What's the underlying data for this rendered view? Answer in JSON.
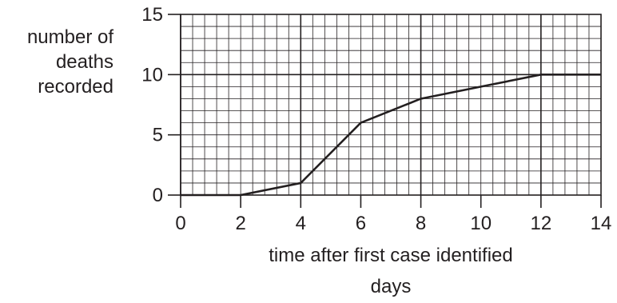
{
  "chart_data": {
    "type": "line",
    "ylabel_lines": [
      "number of",
      "deaths",
      "recorded"
    ],
    "xlabel": "time after first case identified",
    "xunit": "days",
    "xlim": [
      0,
      14
    ],
    "ylim": [
      0,
      15
    ],
    "xticks": [
      0,
      2,
      4,
      6,
      8,
      10,
      12,
      14
    ],
    "yticks": [
      0,
      5,
      10,
      15
    ],
    "x_minor_step": 0.4,
    "y_minor_step": 1,
    "grid": true,
    "series": [
      {
        "x": [
          0,
          2,
          4,
          6,
          8,
          10,
          12,
          14
        ],
        "y": [
          0,
          0,
          1,
          6,
          8,
          9,
          10,
          10
        ]
      }
    ],
    "colors": {
      "line": "#231f20",
      "grid_minor": "#231f20",
      "grid_major": "#231f20"
    }
  }
}
